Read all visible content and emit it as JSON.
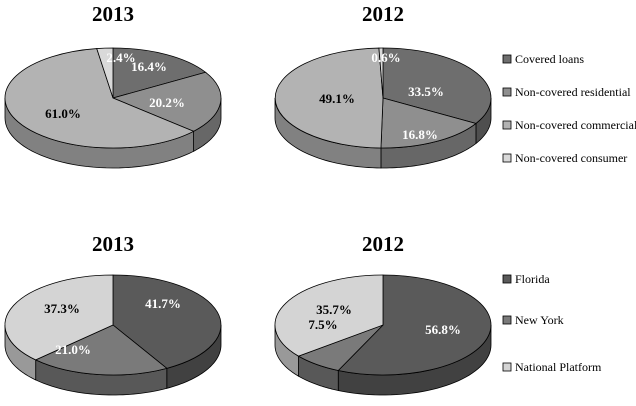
{
  "chart_data": [
    {
      "type": "pie",
      "title": "2013",
      "group": "loan-type",
      "labels": [
        "Covered loans",
        "Non-covered residential",
        "Non-covered commercial",
        "Non-covered consumer"
      ],
      "values": [
        16.4,
        20.2,
        61.0,
        2.4
      ],
      "value_labels": [
        "16.4%",
        "20.2%",
        "61.0%",
        "2.4%"
      ]
    },
    {
      "type": "pie",
      "title": "2012",
      "group": "loan-type",
      "labels": [
        "Covered loans",
        "Non-covered residential",
        "Non-covered commercial",
        "Non-covered consumer"
      ],
      "values": [
        33.5,
        16.8,
        49.1,
        0.6
      ],
      "value_labels": [
        "33.5%",
        "16.8%",
        "49.1%",
        "0.6%"
      ]
    },
    {
      "type": "pie",
      "title": "2013",
      "group": "region",
      "labels": [
        "Florida",
        "New York",
        "National Platform"
      ],
      "values": [
        41.7,
        21.0,
        37.3
      ],
      "value_labels": [
        "41.7%",
        "21.0%",
        "37.3%"
      ]
    },
    {
      "type": "pie",
      "title": "2012",
      "group": "region",
      "labels": [
        "Florida",
        "New York",
        "National Platform"
      ],
      "values": [
        56.8,
        7.5,
        35.7
      ],
      "value_labels": [
        "56.8%",
        "7.5%",
        "35.7%"
      ]
    }
  ],
  "legends": [
    {
      "entries": [
        "Covered loans",
        "Non-covered residential",
        "Non-covered commercial",
        "Non-covered consumer"
      ],
      "colors": [
        "#6e6e6e",
        "#8f8f8f",
        "#b3b3b3",
        "#d9d9d9"
      ]
    },
    {
      "entries": [
        "Florida",
        "New York",
        "National Platform"
      ],
      "colors": [
        "#5a5a5a",
        "#7a7a7a",
        "#d4d4d4"
      ]
    }
  ],
  "colors": {
    "loan-type": [
      "#6e6e6e",
      "#8f8f8f",
      "#b3b3b3",
      "#d9d9d9"
    ],
    "region": [
      "#5a5a5a",
      "#7a7a7a",
      "#d4d4d4"
    ]
  }
}
